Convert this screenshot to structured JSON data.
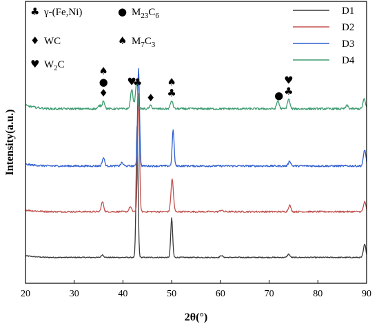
{
  "chart_data": {
    "type": "line",
    "xlabel": "2θ(°)",
    "ylabel": "Intensity(a.u.)",
    "xlim": [
      20,
      90
    ],
    "x_ticks": [
      "20",
      "30",
      "40",
      "50",
      "60",
      "70",
      "80",
      "90"
    ],
    "legend_position": "top-right",
    "series": [
      {
        "name": "D1",
        "color": "#3a3a3a",
        "baseline": 0.2,
        "rise_end": 0.05,
        "noise": 0.004,
        "peaks": [
          [
            35.8,
            0.08
          ],
          [
            42.9,
            4.0
          ],
          [
            50.0,
            1.2
          ],
          [
            60.2,
            0.06
          ],
          [
            74.0,
            0.1
          ],
          [
            89.6,
            0.4
          ]
        ]
      },
      {
        "name": "D2",
        "color": "#c0504d",
        "baseline": 1.6,
        "rise_end": 0.05,
        "noise": 0.006,
        "peaks": [
          [
            35.8,
            0.3
          ],
          [
            41.5,
            0.15
          ],
          [
            43.2,
            3.6
          ],
          [
            50.1,
            1.0
          ],
          [
            60.2,
            0.05
          ],
          [
            74.2,
            0.2
          ],
          [
            89.6,
            0.3
          ]
        ]
      },
      {
        "name": "D3",
        "color": "#2f5fcf",
        "baseline": 3.0,
        "rise_end": 0.05,
        "noise": 0.007,
        "peaks": [
          [
            36.0,
            0.25
          ],
          [
            39.8,
            0.1
          ],
          [
            43.2,
            3.0
          ],
          [
            50.3,
            1.1
          ],
          [
            74.2,
            0.15
          ],
          [
            89.6,
            0.5
          ]
        ]
      },
      {
        "name": "D4",
        "color": "#3e9c72",
        "baseline": 4.75,
        "rise_end": 0.1,
        "noise": 0.008,
        "peaks": [
          [
            35.2,
            0.1
          ],
          [
            36.0,
            0.25
          ],
          [
            41.8,
            0.6
          ],
          [
            42.8,
            0.8
          ],
          [
            45.7,
            0.1
          ],
          [
            50.0,
            0.25
          ],
          [
            71.8,
            0.25
          ],
          [
            74.0,
            0.3
          ],
          [
            86.0,
            0.1
          ],
          [
            89.5,
            0.3
          ]
        ]
      }
    ],
    "phase_legend": [
      {
        "symbol": "♣",
        "label": "γ-(Fe,Ni)"
      },
      {
        "symbol": "●",
        "label": "M23C6",
        "base": "M",
        "sub1": "23",
        "mid": "C",
        "sub2": "6"
      },
      {
        "symbol": "♦",
        "label": "WC"
      },
      {
        "symbol": "♠",
        "label": "M7C3",
        "base": "M",
        "sub1": "7",
        "mid": "C",
        "sub2": "3"
      },
      {
        "symbol": "♥",
        "label": "W2C",
        "base": "W",
        "sub1": "2",
        "mid": "C",
        "sub2": ""
      }
    ],
    "peak_markers": [
      {
        "x": 36.0,
        "symbols": [
          "♠",
          "●",
          "♦"
        ]
      },
      {
        "x": 41.8,
        "symbols": [
          "♥"
        ]
      },
      {
        "x": 43.0,
        "symbols": [
          "♣"
        ]
      },
      {
        "x": 45.7,
        "symbols": [
          "♦"
        ]
      },
      {
        "x": 50.0,
        "symbols": [
          "♠",
          "♣"
        ]
      },
      {
        "x": 72.0,
        "symbols": [
          "●"
        ]
      },
      {
        "x": 74.0,
        "symbols": [
          "♥",
          "♣"
        ]
      }
    ]
  }
}
